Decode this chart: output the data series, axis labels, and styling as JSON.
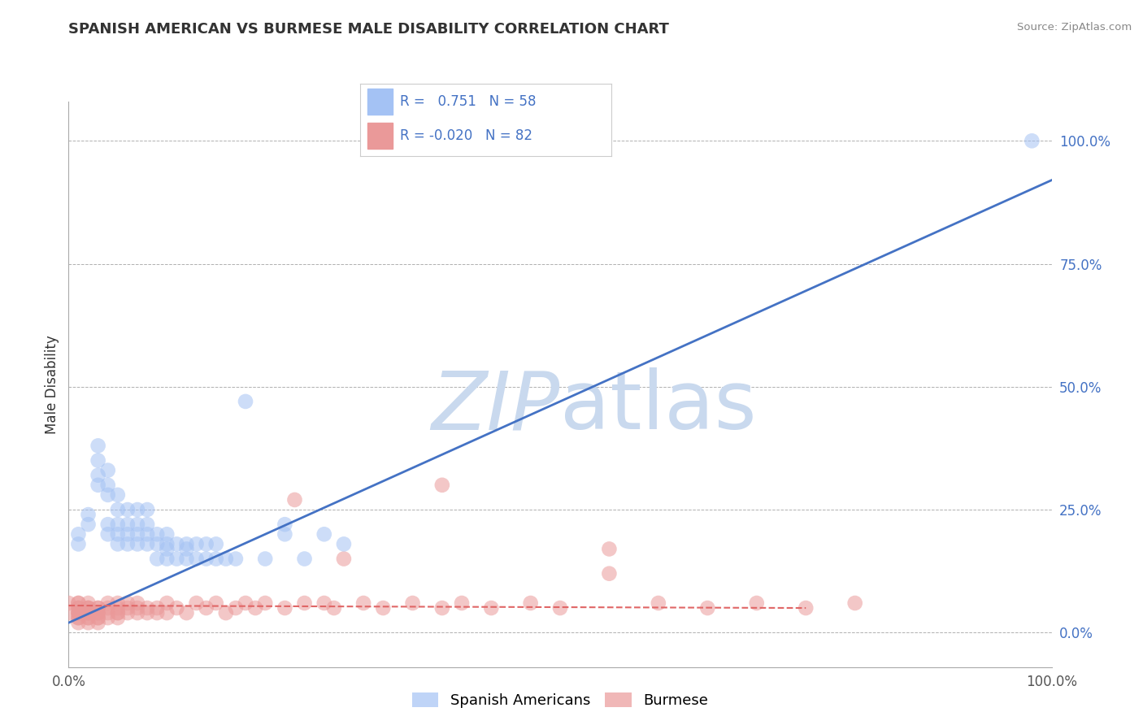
{
  "title": "SPANISH AMERICAN VS BURMESE MALE DISABILITY CORRELATION CHART",
  "source": "Source: ZipAtlas.com",
  "ylabel": "Male Disability",
  "xlim": [
    0.0,
    1.0
  ],
  "ylim": [
    -0.07,
    1.08
  ],
  "yticks": [
    0.0,
    0.25,
    0.5,
    0.75,
    1.0
  ],
  "ytick_labels": [
    "0.0%",
    "25.0%",
    "50.0%",
    "75.0%",
    "100.0%"
  ],
  "xticks": [
    0.0,
    1.0
  ],
  "xtick_labels": [
    "0.0%",
    "100.0%"
  ],
  "blue_R": 0.751,
  "blue_N": 58,
  "pink_R": -0.02,
  "pink_N": 82,
  "blue_color": "#a4c2f4",
  "pink_color": "#ea9999",
  "blue_line_color": "#4472c4",
  "pink_line_color": "#e06666",
  "grid_color": "#b0b0b0",
  "watermark_color": "#c9d9ee",
  "legend_label_1": "Spanish Americans",
  "legend_label_2": "Burmese",
  "blue_line_x0": 0.0,
  "blue_line_y0": 0.02,
  "blue_line_x1": 1.0,
  "blue_line_y1": 0.92,
  "pink_line_x0": 0.0,
  "pink_line_y0": 0.055,
  "pink_line_x1": 0.75,
  "pink_line_y1": 0.05,
  "blue_x": [
    0.01,
    0.01,
    0.02,
    0.02,
    0.03,
    0.03,
    0.03,
    0.03,
    0.04,
    0.04,
    0.04,
    0.04,
    0.04,
    0.05,
    0.05,
    0.05,
    0.05,
    0.05,
    0.06,
    0.06,
    0.06,
    0.06,
    0.07,
    0.07,
    0.07,
    0.07,
    0.08,
    0.08,
    0.08,
    0.08,
    0.09,
    0.09,
    0.09,
    0.1,
    0.1,
    0.1,
    0.1,
    0.11,
    0.11,
    0.12,
    0.12,
    0.12,
    0.13,
    0.13,
    0.14,
    0.14,
    0.15,
    0.15,
    0.16,
    0.17,
    0.18,
    0.2,
    0.22,
    0.22,
    0.24,
    0.26,
    0.28,
    0.98
  ],
  "blue_y": [
    0.18,
    0.2,
    0.22,
    0.24,
    0.3,
    0.32,
    0.35,
    0.38,
    0.2,
    0.22,
    0.28,
    0.3,
    0.33,
    0.18,
    0.2,
    0.22,
    0.25,
    0.28,
    0.18,
    0.2,
    0.22,
    0.25,
    0.18,
    0.2,
    0.22,
    0.25,
    0.18,
    0.2,
    0.22,
    0.25,
    0.15,
    0.18,
    0.2,
    0.15,
    0.17,
    0.18,
    0.2,
    0.15,
    0.18,
    0.15,
    0.17,
    0.18,
    0.15,
    0.18,
    0.15,
    0.18,
    0.15,
    0.18,
    0.15,
    0.15,
    0.47,
    0.15,
    0.2,
    0.22,
    0.15,
    0.2,
    0.18,
    1.0
  ],
  "pink_x": [
    0.0,
    0.0,
    0.01,
    0.01,
    0.01,
    0.01,
    0.01,
    0.01,
    0.01,
    0.01,
    0.01,
    0.01,
    0.02,
    0.02,
    0.02,
    0.02,
    0.02,
    0.02,
    0.02,
    0.02,
    0.02,
    0.02,
    0.03,
    0.03,
    0.03,
    0.03,
    0.03,
    0.03,
    0.03,
    0.04,
    0.04,
    0.04,
    0.04,
    0.05,
    0.05,
    0.05,
    0.05,
    0.05,
    0.06,
    0.06,
    0.06,
    0.07,
    0.07,
    0.07,
    0.08,
    0.08,
    0.09,
    0.09,
    0.1,
    0.1,
    0.11,
    0.12,
    0.13,
    0.14,
    0.15,
    0.16,
    0.17,
    0.18,
    0.19,
    0.2,
    0.22,
    0.23,
    0.24,
    0.26,
    0.27,
    0.28,
    0.3,
    0.32,
    0.35,
    0.38,
    0.4,
    0.43,
    0.47,
    0.5,
    0.55,
    0.6,
    0.65,
    0.7,
    0.75,
    0.8,
    0.38,
    0.55
  ],
  "pink_y": [
    0.04,
    0.06,
    0.02,
    0.03,
    0.04,
    0.05,
    0.06,
    0.03,
    0.04,
    0.05,
    0.06,
    0.04,
    0.02,
    0.03,
    0.04,
    0.05,
    0.03,
    0.04,
    0.05,
    0.06,
    0.04,
    0.05,
    0.02,
    0.03,
    0.04,
    0.05,
    0.03,
    0.04,
    0.05,
    0.03,
    0.04,
    0.05,
    0.06,
    0.03,
    0.04,
    0.05,
    0.06,
    0.04,
    0.05,
    0.06,
    0.04,
    0.05,
    0.04,
    0.06,
    0.05,
    0.04,
    0.05,
    0.04,
    0.06,
    0.04,
    0.05,
    0.04,
    0.06,
    0.05,
    0.06,
    0.04,
    0.05,
    0.06,
    0.05,
    0.06,
    0.05,
    0.27,
    0.06,
    0.06,
    0.05,
    0.15,
    0.06,
    0.05,
    0.06,
    0.05,
    0.06,
    0.05,
    0.06,
    0.05,
    0.12,
    0.06,
    0.05,
    0.06,
    0.05,
    0.06,
    0.3,
    0.17
  ]
}
